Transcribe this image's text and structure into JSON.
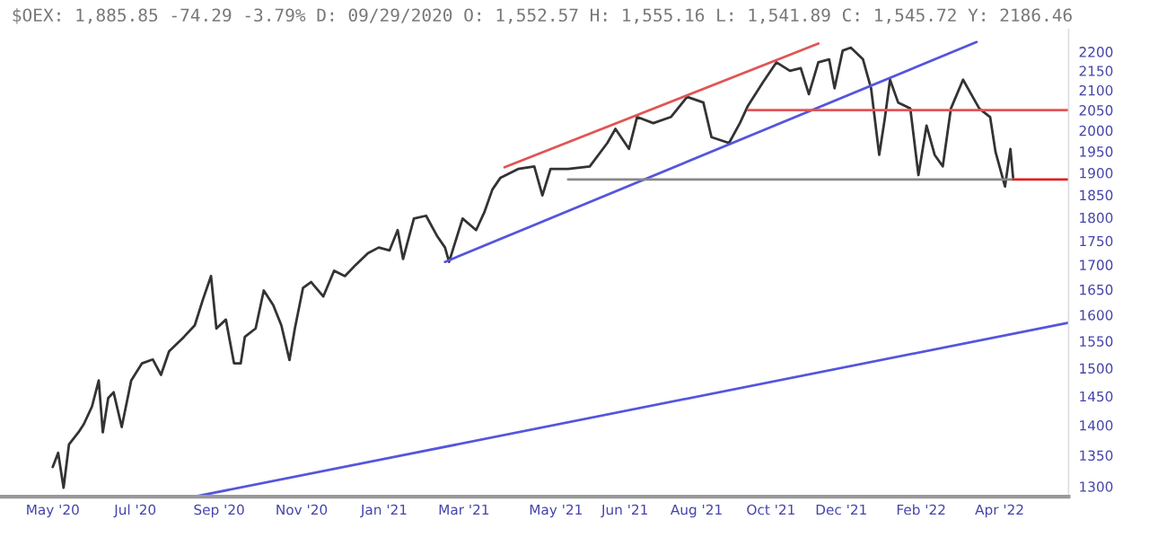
{
  "chart_data": {
    "type": "line",
    "title": "$OEX: 1,885.85 -74.29 -3.79% D: 09/29/2020 O: 1,552.57 H: 1,555.16 L: 1,541.89 C: 1,545.72 Y: 2186.46",
    "log": "y",
    "grid": false,
    "legend": false,
    "marker": "none",
    "line_style": "solid",
    "xlim": [
      "2020-03-23",
      "2022-05-22"
    ],
    "xticks": [
      {
        "value": "2020-05-01",
        "label": "May '20"
      },
      {
        "value": "2020-07-01",
        "label": "Jul '20"
      },
      {
        "value": "2020-09-01",
        "label": "Sep '20"
      },
      {
        "value": "2020-11-01",
        "label": "Nov '20"
      },
      {
        "value": "2021-01-01",
        "label": "Jan '21"
      },
      {
        "value": "2021-03-01",
        "label": "Mar '21"
      },
      {
        "value": "2021-05-08",
        "label": "May '21"
      },
      {
        "value": "2021-06-28",
        "label": "Jun '21"
      },
      {
        "value": "2021-08-20",
        "label": "Aug '21"
      },
      {
        "value": "2021-10-14",
        "label": "Oct '21"
      },
      {
        "value": "2021-12-05",
        "label": "Dec '21"
      },
      {
        "value": "2022-02-02",
        "label": "Feb '22"
      },
      {
        "value": "2022-04-01",
        "label": "Apr '22"
      }
    ],
    "ylim": [
      1284,
      2260
    ],
    "yticks": [
      1300,
      1350,
      1400,
      1450,
      1500,
      1550,
      1600,
      1650,
      1700,
      1750,
      1800,
      1850,
      1900,
      1950,
      2000,
      2050,
      2100,
      2150,
      2200
    ],
    "series": [
      {
        "color": "#333333",
        "x": [
          "2020-05-01",
          "2020-05-05",
          "2020-05-09",
          "2020-05-13",
          "2020-05-20",
          "2020-05-24",
          "2020-05-30",
          "2020-06-04",
          "2020-06-07",
          "2020-06-11",
          "2020-06-15",
          "2020-06-21",
          "2020-06-28",
          "2020-07-06",
          "2020-07-14",
          "2020-07-20",
          "2020-07-26",
          "2020-08-06",
          "2020-08-14",
          "2020-08-20",
          "2020-08-26",
          "2020-08-30",
          "2020-09-06",
          "2020-09-12",
          "2020-09-17",
          "2020-09-20",
          "2020-09-28",
          "2020-10-04",
          "2020-10-11",
          "2020-10-17",
          "2020-10-23",
          "2020-10-27",
          "2020-11-02",
          "2020-11-08",
          "2020-11-17",
          "2020-11-25",
          "2020-12-03",
          "2020-12-11",
          "2020-12-20",
          "2020-12-28",
          "2021-01-05",
          "2021-01-11",
          "2021-01-15",
          "2021-01-23",
          "2021-02-01",
          "2021-02-09",
          "2021-02-15",
          "2021-02-18",
          "2021-02-28",
          "2021-03-10",
          "2021-03-16",
          "2021-03-22",
          "2021-03-28",
          "2021-04-10",
          "2021-04-22",
          "2021-04-28",
          "2021-05-04",
          "2021-05-17",
          "2021-06-02",
          "2021-06-15",
          "2021-06-21",
          "2021-07-01",
          "2021-07-07",
          "2021-07-19",
          "2021-08-01",
          "2021-08-13",
          "2021-08-25",
          "2021-08-31",
          "2021-09-13",
          "2021-09-21",
          "2021-09-27",
          "2021-10-08",
          "2021-10-18",
          "2021-10-28",
          "2021-11-05",
          "2021-11-11",
          "2021-11-18",
          "2021-11-26",
          "2021-11-30",
          "2021-12-06",
          "2021-12-12",
          "2021-12-21",
          "2021-12-27",
          "2022-01-02",
          "2022-01-06",
          "2022-01-10",
          "2022-01-16",
          "2022-01-25",
          "2022-01-31",
          "2022-02-06",
          "2022-02-12",
          "2022-02-18",
          "2022-02-24",
          "2022-03-05",
          "2022-03-11",
          "2022-03-17",
          "2022-03-25",
          "2022-03-29",
          "2022-04-05",
          "2022-04-09",
          "2022-04-11"
        ],
        "values": [
          1331,
          1354,
          1298,
          1368,
          1388,
          1402,
          1432,
          1478,
          1388,
          1447,
          1457,
          1397,
          1478,
          1509,
          1516,
          1488,
          1531,
          1558,
          1580,
          1630,
          1677,
          1574,
          1591,
          1509,
          1509,
          1558,
          1574,
          1648,
          1619,
          1580,
          1515,
          1574,
          1653,
          1665,
          1636,
          1688,
          1677,
          1700,
          1724,
          1736,
          1730,
          1773,
          1712,
          1798,
          1804,
          1761,
          1736,
          1706,
          1798,
          1773,
          1811,
          1862,
          1889,
          1909,
          1915,
          1849,
          1909,
          1909,
          1915,
          1970,
          2004,
          1956,
          2033,
          2018,
          2033,
          2083,
          2069,
          1984,
          1970,
          2018,
          2061,
          2120,
          2172,
          2150,
          2157,
          2090,
          2172,
          2180,
          2105,
          2203,
          2211,
          2180,
          2105,
          1942,
          2026,
          2127,
          2069,
          2054,
          1895,
          2012,
          1942,
          1915,
          2054,
          2127,
          2090,
          2054,
          2033,
          1949,
          1869,
          1956,
          1889
        ]
      },
      {
        "color": "#e05555",
        "x": [
          "2021-03-31",
          "2021-11-18"
        ],
        "values": [
          1913,
          2222
        ]
      },
      {
        "color": "#5555dd",
        "x": [
          "2021-02-15",
          "2022-03-15"
        ],
        "values": [
          1706,
          2226
        ]
      },
      {
        "color": "#5555dd",
        "x": [
          "2020-08-16",
          "2022-05-22"
        ],
        "values": [
          1285,
          1585
        ]
      },
      {
        "color": "#888888",
        "x": [
          "2021-05-17",
          "2022-04-11"
        ],
        "values": [
          1885,
          1885
        ]
      },
      {
        "color": "#e05555",
        "x": [
          "2021-09-27",
          "2022-05-22"
        ],
        "values": [
          2050,
          2050
        ]
      },
      {
        "color": "#dd2222",
        "x": [
          "2022-04-11",
          "2022-05-22"
        ],
        "values": [
          1885,
          1885
        ]
      }
    ]
  }
}
